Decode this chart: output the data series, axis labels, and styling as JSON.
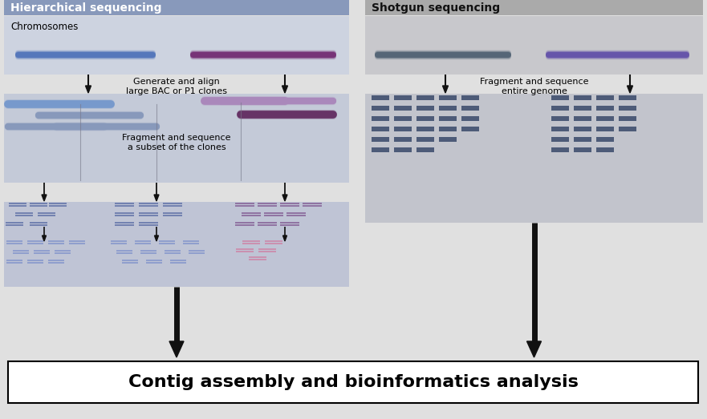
{
  "fig_width": 8.81,
  "fig_height": 5.23,
  "dpi": 100,
  "bg_color": "#e0e0e0",
  "left_title": "Hierarchical sequencing",
  "left_title_bg": "#8899bb",
  "left_title_text_color": "#ffffff",
  "left_box1_bg": "#cdd3e0",
  "left_box2_bg": "#c4cad8",
  "left_box3_bg": "#bfc4d5",
  "right_title": "Shotgun sequencing",
  "right_title_bg": "#aaaaaa",
  "right_title_text_color": "#111111",
  "right_box1_bg": "#c8c8cc",
  "right_box2_bg": "#c2c4cc",
  "chr_blue": "#5577bb",
  "chr_purple": "#773377",
  "chr_grey": "#556677",
  "chr_violet": "#6655aa",
  "clone_blue_light": "#7799cc",
  "clone_blue_mid": "#8899bb",
  "clone_blue_dark": "#556699",
  "clone_purple_light": "#aa88bb",
  "clone_purple_mid": "#9966aa",
  "clone_purple_dark": "#663366",
  "frag_blue": "#6677aa",
  "frag_blue2": "#8899cc",
  "frag_purple": "#886699",
  "frag_pink": "#cc88aa",
  "frag_dark": "#334466",
  "arrow_color": "#111111",
  "bottom_text": "Contig assembly and bioinformatics analysis"
}
